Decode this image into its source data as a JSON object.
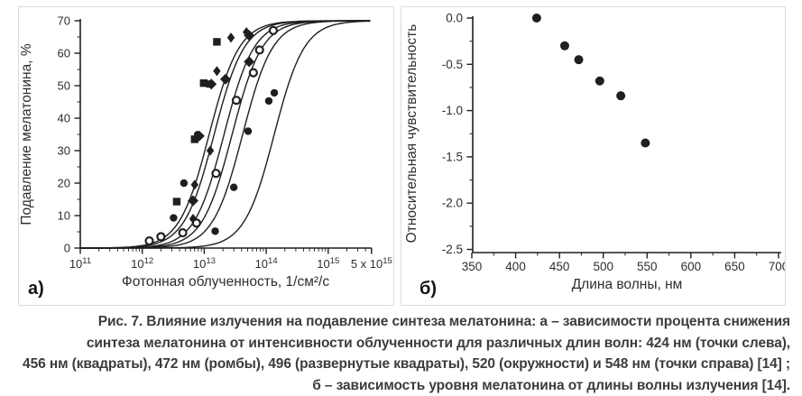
{
  "colors": {
    "plot_ink": "#1f1f1f",
    "tick_text": "#2e2e2e",
    "panel_border": "#d9d9d9",
    "caption_text": "#3c3c3c",
    "open_marker_fill": "#ffffff"
  },
  "caption": {
    "lines": [
      "Рис. 7. Влияние излучения на подавление синтеза мелатонина: а – зависимости процента снижения",
      "синтеза мелатонина от интенсивности облученности для различных длин волн: 424 нм (точки слева),",
      "456 нм (квадраты), 472 нм (ромбы), 496 (развернутые квадраты), 520 (окружности) и 548 нм (точки справа) [14] ;",
      "б – зависимость уровня мелатонина от длины волны излучения [14]."
    ]
  },
  "chart_data": [
    {
      "id": "a",
      "type": "scatter",
      "panel_label": "а)",
      "title": "",
      "xlabel": "Фотонная облученность, 1/см²/с",
      "ylabel": "Подавление мелатонина, %",
      "x_scale": "log",
      "xlim_log10": [
        11,
        15.699
      ],
      "ylim": [
        0,
        70
      ],
      "yticks_major": [
        0,
        10,
        20,
        30,
        40,
        50,
        60,
        70
      ],
      "yticks_minor": [
        5,
        15,
        25,
        35,
        45,
        55,
        65
      ],
      "xticks": [
        {
          "log10": 11,
          "base": "10",
          "sup": "11"
        },
        {
          "log10": 12,
          "base": "10",
          "sup": "12"
        },
        {
          "log10": 13,
          "base": "10",
          "sup": "13"
        },
        {
          "log10": 14,
          "base": "10",
          "sup": "14"
        },
        {
          "log10": 15,
          "base": "10",
          "sup": "15"
        },
        {
          "log10": 15.699,
          "base": "5 x 10",
          "sup": "15"
        }
      ],
      "grid": false,
      "legend": "none",
      "curve_model": "logistic_log10",
      "series": [
        {
          "name": "424 нм (точки слева)",
          "marker": "circle-filled",
          "curve_mid_log10": 13.08,
          "curve_slope": 1.8,
          "curve_max": 70,
          "points": [
            [
              3200000000000.0,
              9.3
            ],
            [
              4700000000000.0,
              20.0
            ],
            [
              7800000000000.0,
              34.9
            ],
            [
              11500000000000.0,
              50.5
            ]
          ]
        },
        {
          "name": "456 нм (квадраты)",
          "marker": "square-filled",
          "curve_mid_log10": 13.16,
          "curve_slope": 1.8,
          "curve_max": 70,
          "points": [
            [
              3600000000000.0,
              14.3
            ],
            [
              7000000000000.0,
              33.5
            ],
            [
              9800000000000.0,
              50.8
            ],
            [
              16000000000000.0,
              63.5
            ]
          ]
        },
        {
          "name": "472 нм (ромбы)",
          "marker": "diamond-filled",
          "curve_mid_log10": 13.32,
          "curve_slope": 1.8,
          "curve_max": 70,
          "points": [
            [
              6600000000000.0,
              9.0
            ],
            [
              7000000000000.0,
              19.5
            ],
            [
              12500000000000.0,
              30.0
            ],
            [
              16000000000000.0,
              54.5
            ],
            [
              27000000000000.0,
              64.8
            ],
            [
              48000000000000.0,
              66.5
            ]
          ]
        },
        {
          "name": "496 (развернутые квадраты)",
          "marker": "square-rotated",
          "curve_mid_log10": 13.45,
          "curve_slope": 1.8,
          "curve_max": 70,
          "points": [
            [
              6600000000000.0,
              14.6
            ],
            [
              8300000000000.0,
              34.5
            ],
            [
              13000000000000.0,
              50.5
            ],
            [
              22000000000000.0,
              52.0
            ],
            [
              53000000000000.0,
              57.4
            ],
            [
              53000000000000.0,
              65.5
            ]
          ]
        },
        {
          "name": "520 (окружности)",
          "marker": "circle-open",
          "curve_mid_log10": 13.62,
          "curve_slope": 1.8,
          "curve_max": 70,
          "points": [
            [
              1300000000000.0,
              2.2
            ],
            [
              2000000000000.0,
              3.5
            ],
            [
              4500000000000.0,
              4.7
            ],
            [
              7500000000000.0,
              7.7
            ],
            [
              15500000000000.0,
              23.0
            ],
            [
              33000000000000.0,
              45.5
            ],
            [
              62000000000000.0,
              54.0
            ],
            [
              78000000000000.0,
              61.0
            ],
            [
              130000000000000.0,
              67.0
            ]
          ]
        },
        {
          "name": "548 нм (точки справа)",
          "marker": "circle-filled",
          "curve_mid_log10": 14.13,
          "curve_slope": 1.8,
          "curve_max": 70,
          "points": [
            [
              15000000000000.0,
              5.2
            ],
            [
              30000000000000.0,
              18.7
            ],
            [
              51000000000000.0,
              36.0
            ],
            [
              110000000000000.0,
              45.3
            ],
            [
              135000000000000.0,
              47.8
            ]
          ]
        }
      ]
    },
    {
      "id": "b",
      "type": "scatter",
      "panel_label": "б)",
      "title": "",
      "xlabel": "Длина волны, нм",
      "ylabel": "Относительная чувствительность",
      "x_scale": "linear",
      "xlim": [
        350,
        700
      ],
      "ylim": [
        -2.5,
        0
      ],
      "xticks_major": [
        350,
        400,
        450,
        500,
        550,
        600,
        650,
        700
      ],
      "xticks_minor": [
        375,
        425,
        475,
        525,
        575,
        625,
        675
      ],
      "yticks_major": [
        0,
        -0.5,
        -1.0,
        -1.5,
        -2.0,
        -2.5
      ],
      "yticks_minor": [
        -0.25,
        -0.75,
        -1.25,
        -1.75,
        -2.25
      ],
      "grid": false,
      "legend": "none",
      "marker": "circle-filled",
      "points": [
        [
          424,
          0.0
        ],
        [
          456,
          -0.3
        ],
        [
          472,
          -0.45
        ],
        [
          496,
          -0.68
        ],
        [
          520,
          -0.84
        ],
        [
          548,
          -1.35
        ]
      ]
    }
  ]
}
